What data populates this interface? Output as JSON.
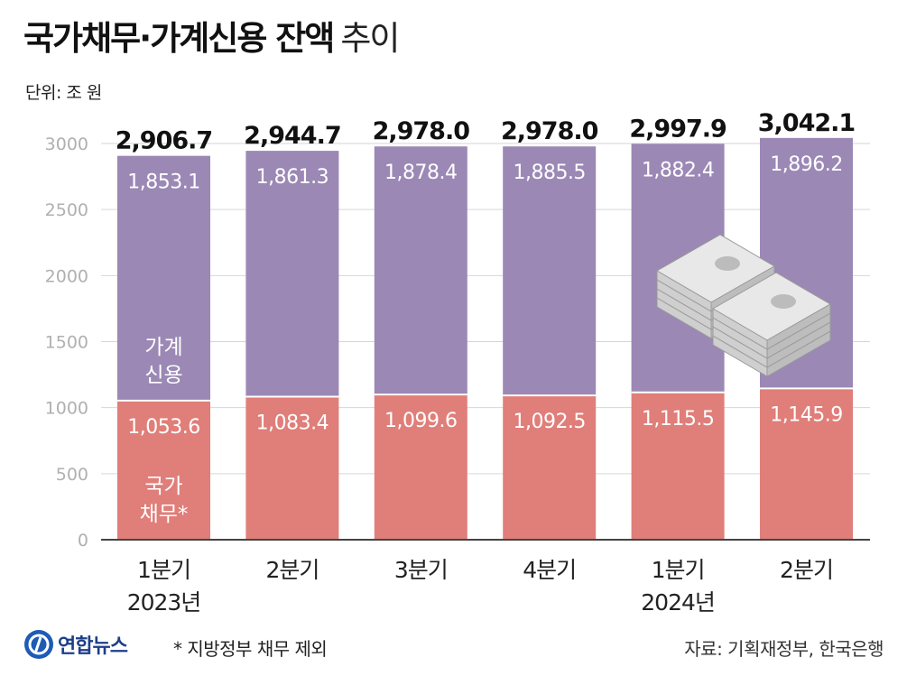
{
  "title": "국가채무·가계신용 잔액",
  "title_suffix": "추이",
  "unit": "단위: 조 원",
  "footnote": "* 지방정부 채무 제외",
  "source": "자료: 기획재정부, 한국은행",
  "logo_text": "연합뉴스",
  "colors": {
    "household": "#9b88b5",
    "government": "#e07e79",
    "grid": "#d6d6d6",
    "axis": "#444444"
  },
  "chart_data": {
    "type": "bar",
    "stacked": true,
    "categories": [
      "1분기",
      "2분기",
      "3분기",
      "4분기",
      "1분기",
      "2분기"
    ],
    "year_labels": [
      "2023년",
      "",
      "",
      "",
      "2024년",
      ""
    ],
    "series": [
      {
        "name": "국가 채무*",
        "values": [
          1053.6,
          1083.4,
          1099.6,
          1092.5,
          1115.5,
          1145.9
        ]
      },
      {
        "name": "가계 신용",
        "values": [
          1853.1,
          1861.3,
          1878.4,
          1885.5,
          1882.4,
          1896.2
        ]
      }
    ],
    "series_value_labels": [
      [
        "1,053.6",
        "1,083.4",
        "1,099.6",
        "1,092.5",
        "1,115.5",
        "1,145.9"
      ],
      [
        "1,853.1",
        "1,861.3",
        "1,878.4",
        "1,885.5",
        "1,882.4",
        "1,896.2"
      ]
    ],
    "totals": [
      "2,906.7",
      "2,944.7",
      "2,978.0",
      "2,978.0",
      "2,997.9",
      "3,042.1"
    ],
    "yticks": [
      0,
      500,
      1000,
      1500,
      2000,
      2500,
      3000
    ],
    "ylim": [
      0,
      3000
    ],
    "grid": true,
    "legend": "inside-first-bar"
  }
}
